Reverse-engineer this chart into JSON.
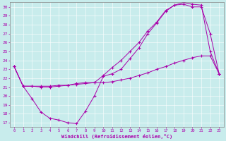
{
  "xlabel": "Windchill (Refroidissement éolien,°C)",
  "background_color": "#c8ecec",
  "line_color": "#aa00aa",
  "xlim": [
    -0.5,
    23.5
  ],
  "ylim": [
    16.5,
    30.5
  ],
  "yticks": [
    17,
    18,
    19,
    20,
    21,
    22,
    23,
    24,
    25,
    26,
    27,
    28,
    29,
    30
  ],
  "xticks": [
    0,
    1,
    2,
    3,
    4,
    5,
    6,
    7,
    8,
    9,
    10,
    11,
    12,
    13,
    14,
    15,
    16,
    17,
    18,
    19,
    20,
    21,
    22,
    23
  ],
  "line1_x": [
    0,
    1,
    2,
    3,
    4,
    5,
    6,
    7,
    8,
    9,
    10,
    11,
    12,
    13,
    14,
    15,
    16,
    17,
    18,
    19,
    20,
    21,
    22,
    23
  ],
  "line1_y": [
    23.3,
    21.1,
    19.7,
    18.2,
    17.5,
    17.3,
    17.0,
    16.9,
    18.3,
    20.0,
    22.2,
    22.5,
    23.0,
    24.2,
    25.4,
    27.0,
    28.2,
    29.5,
    30.2,
    30.5,
    30.3,
    30.2,
    25.0,
    22.5
  ],
  "line2_x": [
    0,
    1,
    2,
    3,
    4,
    5,
    6,
    7,
    8,
    9,
    10,
    11,
    12,
    13,
    14,
    15,
    16,
    17,
    18,
    19,
    20,
    21,
    22,
    23
  ],
  "line2_y": [
    23.3,
    21.1,
    21.1,
    21.1,
    21.1,
    21.2,
    21.2,
    21.3,
    21.4,
    21.5,
    21.5,
    21.6,
    21.8,
    22.0,
    22.3,
    22.6,
    23.0,
    23.3,
    23.7,
    24.0,
    24.3,
    24.5,
    24.5,
    22.5
  ],
  "line3_x": [
    0,
    1,
    2,
    3,
    4,
    5,
    6,
    7,
    8,
    9,
    10,
    11,
    12,
    13,
    14,
    15,
    16,
    17,
    18,
    19,
    20,
    21,
    22,
    23
  ],
  "line3_y": [
    23.3,
    21.1,
    21.1,
    21.0,
    21.0,
    21.1,
    21.2,
    21.4,
    21.5,
    21.5,
    22.3,
    23.2,
    24.0,
    25.0,
    26.0,
    27.3,
    28.3,
    29.6,
    30.2,
    30.3,
    30.0,
    30.0,
    27.0,
    22.5
  ]
}
